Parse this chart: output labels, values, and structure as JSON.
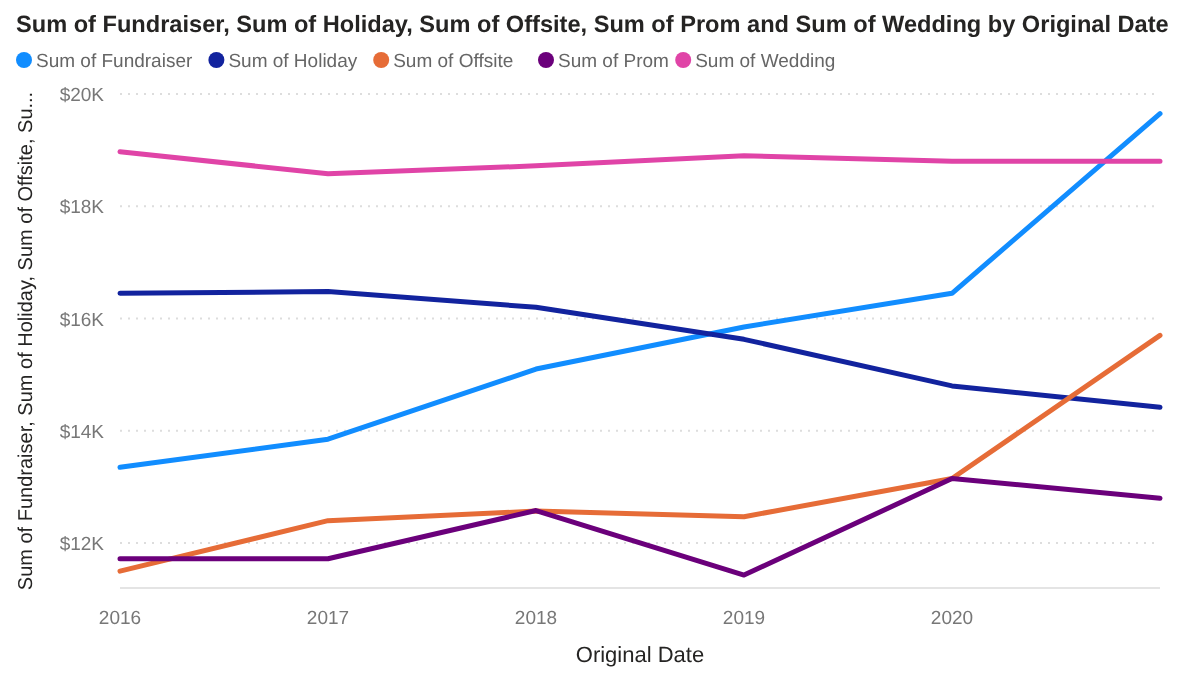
{
  "chart_data": {
    "type": "line",
    "title": "Sum of Fundraiser, Sum of Holiday, Sum of Offsite, Sum of Prom and Sum of Wedding by Original Date",
    "xlabel": "Original Date",
    "ylabel": "Sum of Fundraiser, Sum of Holiday, Sum of Offsite, Su...",
    "x": [
      2016,
      2017,
      2018,
      2019,
      2020,
      2021
    ],
    "series": [
      {
        "name": "Sum of Fundraiser",
        "color": "#118dff",
        "values": [
          13350,
          13850,
          15100,
          15850,
          16450,
          19650
        ]
      },
      {
        "name": "Sum of Holiday",
        "color": "#12239e",
        "values": [
          16450,
          16480,
          16200,
          15630,
          14800,
          14420
        ]
      },
      {
        "name": "Sum of Offsite",
        "color": "#e66c37",
        "values": [
          11500,
          12400,
          12570,
          12470,
          13150,
          15700
        ]
      },
      {
        "name": "Sum of Prom",
        "color": "#6b007b",
        "values": [
          11720,
          11720,
          12580,
          11430,
          13150,
          12800
        ]
      },
      {
        "name": "Sum of Wedding",
        "color": "#e044a7",
        "values": [
          18970,
          18580,
          18720,
          18900,
          18800,
          18800
        ]
      }
    ],
    "xlim": [
      2016,
      2021
    ],
    "xticks": [
      2016,
      2017,
      2018,
      2019,
      2020
    ],
    "ylim": [
      11200,
      20000
    ],
    "yticks": [
      {
        "value": 12000,
        "label": "$12K"
      },
      {
        "value": 14000,
        "label": "$14K"
      },
      {
        "value": 16000,
        "label": "$16K"
      },
      {
        "value": 18000,
        "label": "$18K"
      },
      {
        "value": 20000,
        "label": "$20K"
      }
    ],
    "grid": "y",
    "legend": "top left",
    "marker": "none",
    "line_style": "solid"
  }
}
